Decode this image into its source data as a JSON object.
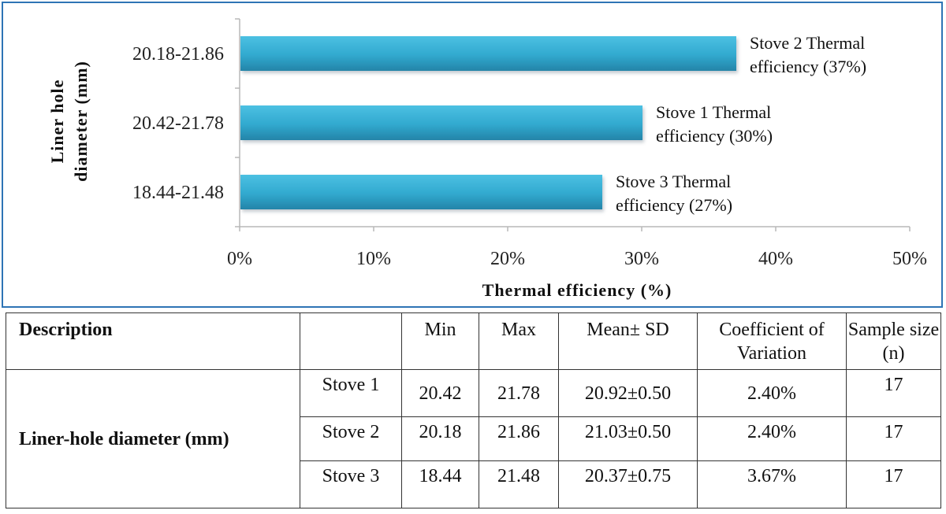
{
  "chart_data": {
    "type": "bar",
    "orientation": "horizontal",
    "categories": [
      "20.18-21.86",
      "20.42-21.78",
      "18.44-21.48"
    ],
    "values": [
      37,
      30,
      27
    ],
    "data_labels": [
      [
        "Stove 2 Thermal",
        "efficiency (37%)"
      ],
      [
        "Stove 1 Thermal",
        "efficiency (30%)"
      ],
      [
        "Stove 3 Thermal",
        "efficiency (27%)"
      ]
    ],
    "xlabel": "Thermal efficiency (%)",
    "ylabel": [
      "Liner hole",
      "diameter  (mm)"
    ],
    "xlim": [
      0,
      50
    ],
    "xticks": [
      0,
      10,
      20,
      30,
      40,
      50
    ],
    "xtick_labels": [
      "0%",
      "10%",
      "20%",
      "30%",
      "40%",
      "50%"
    ],
    "grid": false,
    "bar_color": "#31a9cf"
  },
  "table": {
    "headers": [
      "Description",
      "",
      "Min",
      "Max",
      "Mean± SD",
      "Coefficient of Variation",
      "Sample size (n)"
    ],
    "description": "Liner-hole diameter (mm)",
    "rows": [
      {
        "label": "Stove 1",
        "min": "20.42",
        "max": "21.78",
        "mean_sd": "20.92±0.50",
        "cv": "2.40%",
        "n": "17"
      },
      {
        "label": "Stove 2",
        "min": "20.18",
        "max": "21.86",
        "mean_sd": "21.03±0.50",
        "cv": "2.40%",
        "n": "17"
      },
      {
        "label": "Stove 3",
        "min": "18.44",
        "max": "21.48",
        "mean_sd": "20.37±0.75",
        "cv": "3.67%",
        "n": "17"
      }
    ]
  }
}
